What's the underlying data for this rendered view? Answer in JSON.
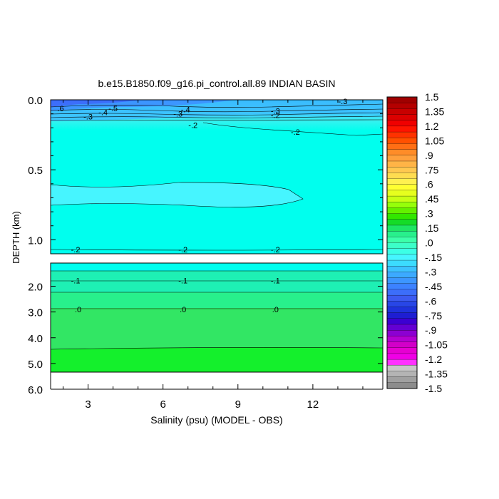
{
  "chart_data": {
    "type": "heatmap",
    "title": "b.e15.B1850.f09_g16.pi_control.all.89 INDIAN BASIN",
    "xlabel": "Salinity (psu) (MODEL - OBS)",
    "ylabel": "DEPTH (km)",
    "xlim": [
      1.5,
      14.8
    ],
    "x_ticks": [
      "3",
      "6",
      "9",
      "12"
    ],
    "x_tick_values": [
      3,
      6,
      9,
      12
    ],
    "upper_panel": {
      "ylim": [
        0.0,
        1.1
      ],
      "y_ticks": [
        "0.0",
        "0.5",
        "1.0"
      ],
      "y_tick_values": [
        0.0,
        0.5,
        1.0
      ]
    },
    "lower_panel": {
      "ylim": [
        1.1,
        6.0
      ],
      "y_ticks": [
        "2.0",
        "3.0",
        "4.0",
        "5.0",
        "6.0"
      ],
      "y_tick_values": [
        2.0,
        3.0,
        4.0,
        5.0,
        6.0
      ],
      "data_bottom_depth": 5.35
    },
    "contour_labels": [
      {
        "text": "-.3",
        "x": 13.2,
        "depth": 0.01,
        "panel": "upper"
      },
      {
        "text": ".6",
        "x": 1.9,
        "depth": 0.06,
        "panel": "upper"
      },
      {
        "text": "-.5",
        "x": 4.0,
        "depth": 0.06,
        "panel": "upper"
      },
      {
        "text": "-.4",
        "x": 3.6,
        "depth": 0.09,
        "panel": "upper"
      },
      {
        "text": "-.3",
        "x": 3.0,
        "depth": 0.12,
        "panel": "upper"
      },
      {
        "text": "-.4",
        "x": 6.9,
        "depth": 0.07,
        "panel": "upper"
      },
      {
        "text": "-.3",
        "x": 6.6,
        "depth": 0.1,
        "panel": "upper"
      },
      {
        "text": "-.3",
        "x": 10.5,
        "depth": 0.08,
        "panel": "upper"
      },
      {
        "text": "-.2",
        "x": 10.5,
        "depth": 0.11,
        "panel": "upper"
      },
      {
        "text": "-.2",
        "x": 7.2,
        "depth": 0.18,
        "panel": "upper"
      },
      {
        "text": "-.2",
        "x": 11.3,
        "depth": 0.23,
        "panel": "upper"
      },
      {
        "text": "-.2",
        "x": 2.5,
        "depth": 1.07,
        "panel": "upper"
      },
      {
        "text": "-.2",
        "x": 6.8,
        "depth": 1.07,
        "panel": "upper"
      },
      {
        "text": "-.2",
        "x": 10.5,
        "depth": 1.07,
        "panel": "upper"
      },
      {
        "text": "-.1",
        "x": 2.5,
        "depth": 1.78,
        "panel": "lower"
      },
      {
        "text": "-.1",
        "x": 6.8,
        "depth": 1.78,
        "panel": "lower"
      },
      {
        "text": "-.1",
        "x": 10.5,
        "depth": 1.78,
        "panel": "lower"
      },
      {
        "text": ".0",
        "x": 2.6,
        "depth": 2.9,
        "panel": "lower"
      },
      {
        "text": ".0",
        "x": 6.8,
        "depth": 2.9,
        "panel": "lower"
      },
      {
        "text": ".0",
        "x": 10.5,
        "depth": 2.9,
        "panel": "lower"
      }
    ],
    "colorbar": {
      "labels": [
        "1.5",
        "1.35",
        "1.2",
        "1.05",
        ".9",
        ".75",
        ".6",
        ".45",
        ".3",
        ".15",
        ".0",
        "-.15",
        "-.3",
        "-.45",
        "-.6",
        "-.75",
        "-.9",
        "-1.05",
        "-1.2",
        "-1.35",
        "-1.5"
      ],
      "colors": [
        "#a00000",
        "#b40000",
        "#c80000",
        "#dc0000",
        "#f00000",
        "#ff1400",
        "#ff3200",
        "#ff5000",
        "#ff6e14",
        "#ff8c28",
        "#ffa03c",
        "#ffb446",
        "#ffc850",
        "#ffdc50",
        "#fff050",
        "#ffff32",
        "#e6ff1e",
        "#c8ff14",
        "#96ff0a",
        "#64f000",
        "#32e600",
        "#14dc28",
        "#1ee664",
        "#28f08c",
        "#3cffaa",
        "#3cffc8",
        "#3cffe6",
        "#46f5ff",
        "#3cdcff",
        "#3cc3ff",
        "#3caaff",
        "#3c96ff",
        "#3c82ff",
        "#3c6efa",
        "#3c5af0",
        "#2846e6",
        "#1e32dc",
        "#1e1ed2",
        "#3c00d2",
        "#6400d2",
        "#8c00d2",
        "#b400d2",
        "#d200c8",
        "#e600d2",
        "#f000e6",
        "#ff32ff",
        "#c8c8c8",
        "#b4b4b4",
        "#a0a0a0",
        "#8c8c8c"
      ]
    }
  }
}
